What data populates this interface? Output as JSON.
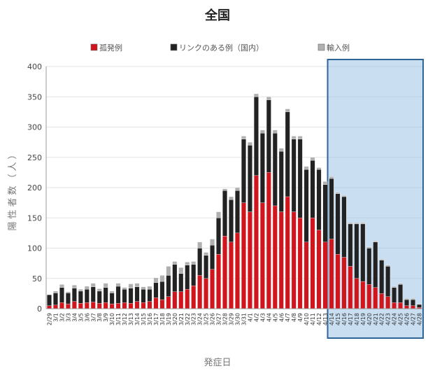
{
  "chart_data": {
    "type": "bar",
    "stacked": true,
    "title": "全国",
    "xlabel": "発症日",
    "ylabel": "陽性者数（人）",
    "ylim": [
      0,
      400
    ],
    "yticks": [
      0,
      50,
      100,
      150,
      200,
      250,
      300,
      350,
      400
    ],
    "grid": true,
    "legend_position": "top",
    "categories": [
      "2/29",
      "3/1",
      "3/2",
      "3/3",
      "3/4",
      "3/5",
      "3/6",
      "3/7",
      "3/8",
      "3/9",
      "3/10",
      "3/11",
      "3/12",
      "3/13",
      "3/14",
      "3/15",
      "3/16",
      "3/17",
      "3/18",
      "3/19",
      "3/20",
      "3/21",
      "3/22",
      "3/23",
      "3/24",
      "3/25",
      "3/26",
      "3/27",
      "3/28",
      "3/29",
      "3/30",
      "3/31",
      "4/1",
      "4/2",
      "4/3",
      "4/4",
      "4/5",
      "4/6",
      "4/7",
      "4/8",
      "4/9",
      "4/10",
      "4/11",
      "4/12",
      "4/13",
      "4/14",
      "4/15",
      "4/16",
      "4/17",
      "4/18",
      "4/19",
      "4/20",
      "4/21",
      "4/22",
      "4/23",
      "4/24",
      "4/25",
      "4/26",
      "4/27",
      "4/28"
    ],
    "series": [
      {
        "name": "孤発例",
        "color": "#d0151c",
        "values": [
          5,
          6,
          10,
          8,
          12,
          9,
          10,
          11,
          9,
          10,
          8,
          9,
          10,
          9,
          12,
          10,
          12,
          18,
          15,
          20,
          28,
          28,
          32,
          38,
          55,
          50,
          65,
          90,
          120,
          110,
          125,
          175,
          160,
          220,
          175,
          225,
          170,
          160,
          185,
          160,
          150,
          110,
          150,
          130,
          110,
          115,
          90,
          85,
          70,
          50,
          45,
          40,
          35,
          25,
          20,
          10,
          10,
          5,
          5,
          2
        ]
      },
      {
        "name": "リンクのある例（国内）",
        "color": "#222222",
        "values": [
          18,
          20,
          25,
          18,
          22,
          20,
          22,
          25,
          20,
          25,
          18,
          28,
          22,
          25,
          24,
          22,
          20,
          25,
          30,
          35,
          45,
          30,
          40,
          35,
          45,
          38,
          40,
          60,
          75,
          70,
          70,
          105,
          110,
          130,
          115,
          120,
          120,
          100,
          140,
          120,
          130,
          120,
          95,
          100,
          95,
          100,
          100,
          100,
          70,
          90,
          95,
          60,
          75,
          55,
          50,
          25,
          30,
          10,
          10,
          5
        ]
      },
      {
        "name": "輸入例",
        "color": "#b0b0b0",
        "values": [
          0,
          3,
          5,
          2,
          5,
          3,
          5,
          6,
          4,
          7,
          3,
          5,
          3,
          7,
          6,
          4,
          5,
          8,
          10,
          15,
          5,
          10,
          5,
          5,
          10,
          5,
          10,
          10,
          3,
          5,
          5,
          5,
          5,
          5,
          5,
          5,
          5,
          5,
          5,
          5,
          5,
          5,
          5,
          3,
          5,
          3,
          2,
          2,
          2,
          2,
          2,
          2,
          2,
          2,
          2,
          2,
          2,
          2,
          2,
          1
        ]
      }
    ],
    "highlight_range": [
      "4/14",
      "4/28"
    ]
  }
}
